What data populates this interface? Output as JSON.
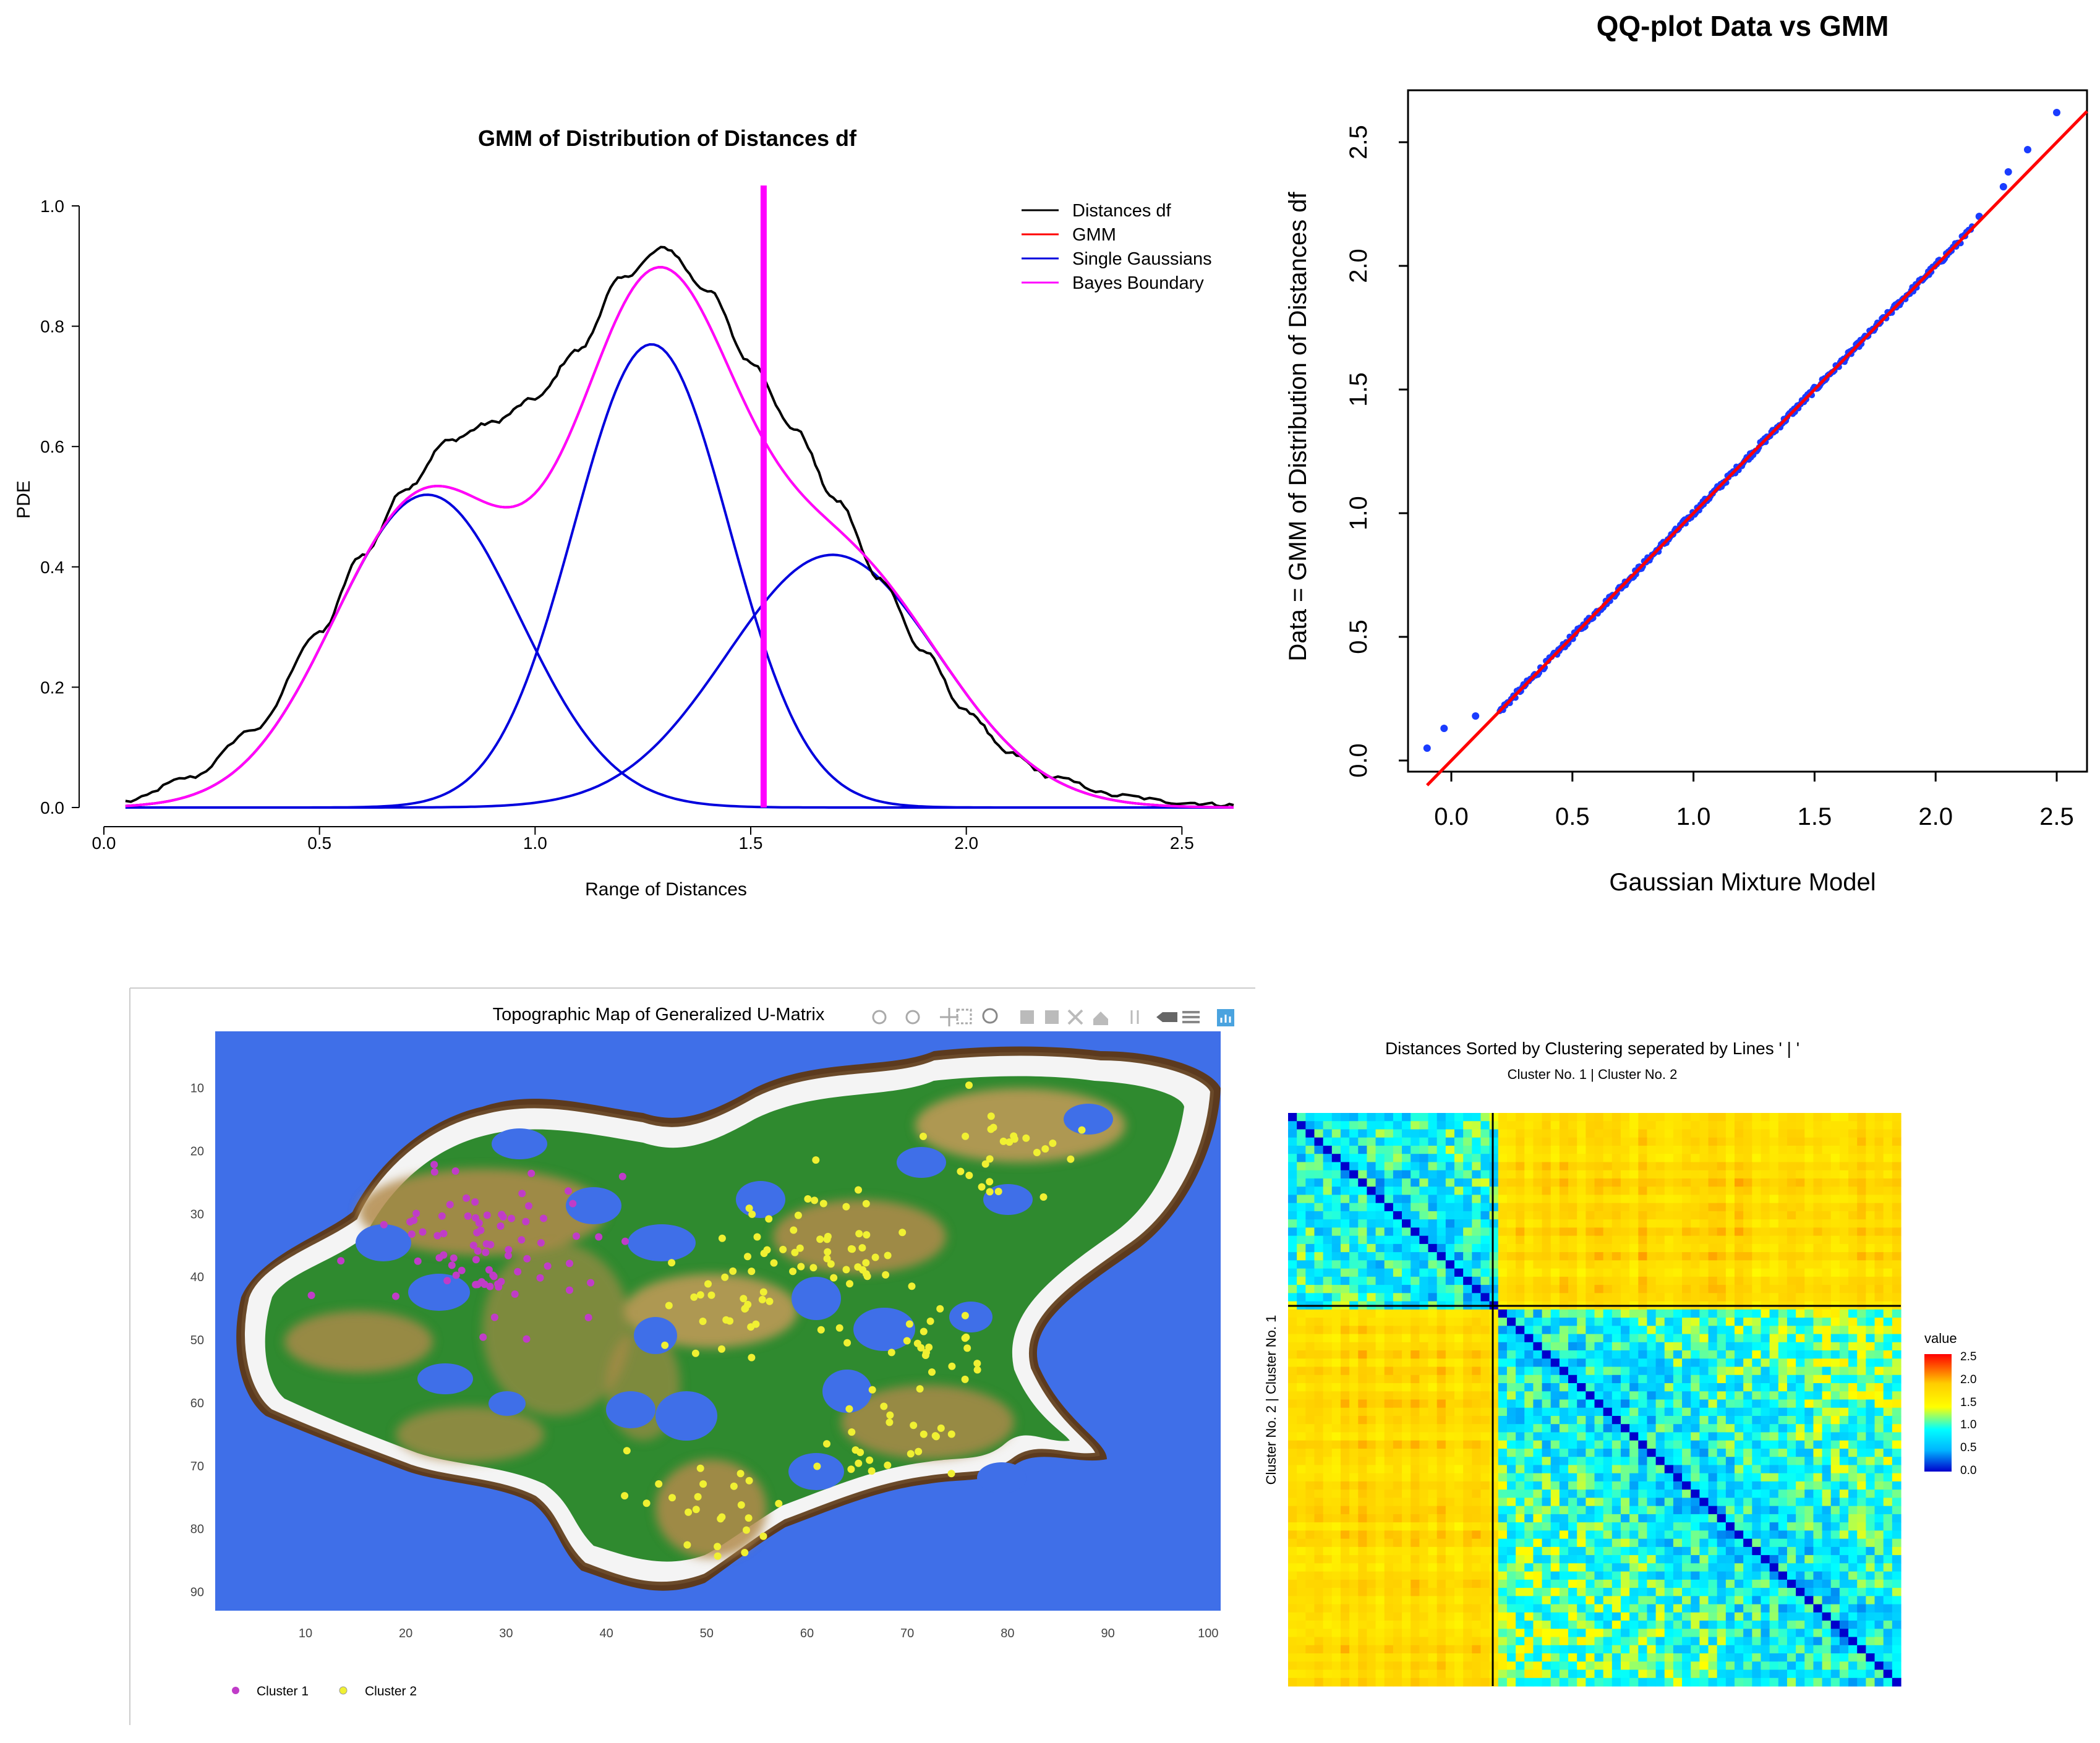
{
  "chart_data": [
    {
      "id": "gmm",
      "type": "line",
      "title": "GMM of Distribution of Distances df",
      "xlabel": "Range of Distances",
      "ylabel": "PDE",
      "xlim": [
        0,
        2.62
      ],
      "ylim": [
        0,
        1.0
      ],
      "xticks": [
        "0.0",
        "0.5",
        "1.0",
        "1.5",
        "2.0",
        "2.5"
      ],
      "yticks": [
        "0.0",
        "0.2",
        "0.4",
        "0.6",
        "0.8",
        "1.0"
      ],
      "legend": [
        {
          "label": "Distances df",
          "color": "#000000"
        },
        {
          "label": "GMM",
          "color": "#ff0000"
        },
        {
          "label": "Single Gaussians",
          "color": "#0000dd"
        },
        {
          "label": "Bayes Boundary",
          "color": "#ff00ff"
        }
      ],
      "bayes_boundary": 1.53,
      "gaussians": [
        {
          "mean": 0.75,
          "sd": 0.215,
          "peak": 0.52
        },
        {
          "mean": 1.27,
          "sd": 0.18,
          "peak": 0.77
        },
        {
          "mean": 1.69,
          "sd": 0.245,
          "peak": 0.42
        }
      ],
      "series": [
        {
          "name": "Distances df",
          "x": [
            0.05,
            0.2,
            0.35,
            0.5,
            0.6,
            0.7,
            0.8,
            0.9,
            1.0,
            1.1,
            1.2,
            1.3,
            1.4,
            1.5,
            1.6,
            1.7,
            1.8,
            1.9,
            2.0,
            2.1,
            2.2,
            2.35,
            2.5,
            2.62
          ],
          "y": [
            0.01,
            0.05,
            0.13,
            0.29,
            0.42,
            0.53,
            0.61,
            0.64,
            0.68,
            0.76,
            0.88,
            0.93,
            0.86,
            0.74,
            0.63,
            0.51,
            0.38,
            0.26,
            0.16,
            0.09,
            0.05,
            0.02,
            0.008,
            0.004
          ]
        }
      ]
    },
    {
      "id": "qq",
      "type": "scatter",
      "title": "QQ-plot Data vs GMM",
      "xlabel": "Gaussian Mixture Model",
      "ylabel": "Data = GMM of Distribution of Distances df",
      "xlim": [
        -0.12,
        2.6
      ],
      "ylim": [
        -0.05,
        2.7
      ],
      "xticks": [
        "0.0",
        "0.5",
        "1.0",
        "1.5",
        "2.0",
        "2.5"
      ],
      "yticks": [
        "0.0",
        "0.5",
        "1.0",
        "1.5",
        "2.0",
        "2.5"
      ],
      "reference_line": {
        "slope": 1,
        "intercept": 0
      },
      "outliers": [
        [
          -0.1,
          0.05
        ],
        [
          -0.03,
          0.13
        ],
        [
          0.1,
          0.18
        ],
        [
          2.18,
          2.2
        ],
        [
          2.3,
          2.38
        ],
        [
          2.38,
          2.47
        ],
        [
          2.5,
          2.62
        ],
        [
          2.28,
          2.32
        ]
      ]
    },
    {
      "id": "umatrix",
      "type": "heatmap",
      "title": "Topographic Map of Generalized U-Matrix",
      "xticks": [
        "10",
        "20",
        "30",
        "40",
        "50",
        "60",
        "70",
        "80",
        "90",
        "100"
      ],
      "yticks": [
        "10",
        "20",
        "30",
        "40",
        "50",
        "60",
        "70",
        "80",
        "90"
      ],
      "legend": [
        {
          "label": "Cluster 1",
          "color": "#c03cc8"
        },
        {
          "label": "Cluster 2",
          "color": "#f0f032"
        }
      ],
      "clusters": [
        {
          "name": "Cluster 1",
          "center": [
            28,
            36
          ],
          "spread": [
            10,
            12
          ]
        },
        {
          "name": "Cluster 2",
          "center": [
            65,
            50
          ],
          "spread": [
            22,
            28
          ]
        }
      ]
    },
    {
      "id": "distances",
      "type": "heatmap",
      "title": "Distances Sorted by Clustering seperated by Lines ' | '",
      "subtitle": "Cluster No. 1 | Cluster No. 2",
      "ylabel": "Cluster No. 2 | Cluster No. 1",
      "colorbar_title": "value",
      "colorbar_ticks": [
        "2.5",
        "2.0",
        "1.5",
        "1.0",
        "0.5",
        "0.0"
      ],
      "value_range": [
        0,
        2.6
      ],
      "cluster_split_fraction": 0.336
    }
  ]
}
